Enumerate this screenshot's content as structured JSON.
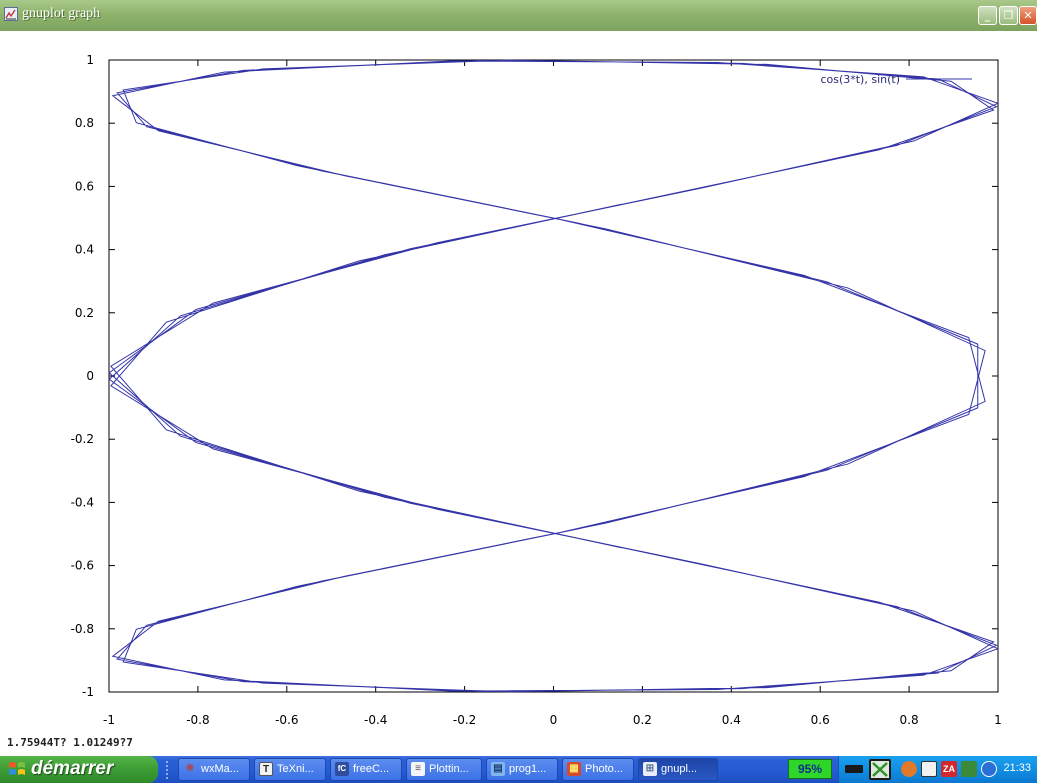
{
  "window": {
    "title": "gnuplot graph",
    "min_glyph": "_",
    "max_glyph": "❐",
    "close_glyph": "✕"
  },
  "chart_data": {
    "type": "line",
    "title": "",
    "xlabel": "",
    "ylabel": "",
    "xlim": [
      -1,
      1
    ],
    "ylim": [
      -1,
      1
    ],
    "grid": false,
    "legend_position": "top-right",
    "x_ticks": [
      -1,
      -0.8,
      -0.6,
      -0.4,
      -0.2,
      0,
      0.2,
      0.4,
      0.6,
      0.8,
      1
    ],
    "y_ticks": [
      -1,
      -0.8,
      -0.6,
      -0.4,
      -0.2,
      0,
      0.2,
      0.4,
      0.6,
      0.8,
      1
    ],
    "series": [
      {
        "name": "cos(3*t), sin(t)",
        "color": "#3434a8",
        "parametric": {
          "x": "cos(3*t)",
          "y": "sin(t)",
          "t_range": [
            -10,
            10
          ],
          "samples": 100
        }
      }
    ]
  },
  "status": {
    "coords": "1.75944T? 1.01249?7"
  },
  "taskbar": {
    "start_label": "démarrer",
    "tasks": [
      {
        "label": "wxMa...",
        "icon": "wxmaxima-icon",
        "color": "#c0392b",
        "glyph": "※"
      },
      {
        "label": "TeXni...",
        "icon": "texnic-icon",
        "color": "#f2f2f2",
        "glyph": "T"
      },
      {
        "label": "freeC...",
        "icon": "freecommander-icon",
        "color": "#2e4d9e",
        "glyph": "fC"
      },
      {
        "label": "Plottin...",
        "icon": "document-icon",
        "color": "#f5f5f5",
        "glyph": "≡"
      },
      {
        "label": "prog1...",
        "icon": "notepad-icon",
        "color": "#7fb6ee",
        "glyph": "▤"
      },
      {
        "label": "Photo...",
        "icon": "photo-icon",
        "color": "#d44a2c",
        "glyph": "▦"
      },
      {
        "label": "gnupl...",
        "icon": "gnuplot-icon",
        "color": "#e9eef8",
        "glyph": "⊞"
      }
    ],
    "battery": "95%",
    "clock": "21:33"
  }
}
